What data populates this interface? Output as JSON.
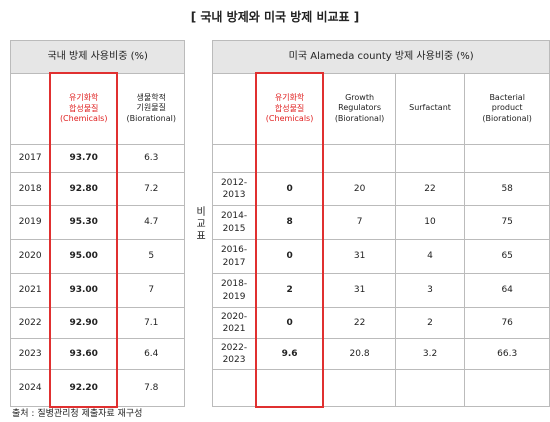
{
  "title": "[ 국내 방제와 미국 방제 비교표 ]",
  "domestic": {
    "header": "국내 방제 사용비중 (%)",
    "columns": [
      "유기화학\n합성물질\n(Chemicals)",
      "생물학적\n기원물질\n(Biorational)"
    ],
    "rows": [
      [
        "2017",
        "93.70",
        "6.3"
      ],
      [
        "2018",
        "92.80",
        "7.2"
      ],
      [
        "2019",
        "95.30",
        "4.7"
      ],
      [
        "2020",
        "95.00",
        "5"
      ],
      [
        "2021",
        "93.00",
        "7"
      ],
      [
        "2022",
        "92.90",
        "7.1"
      ],
      [
        "2023",
        "93.60",
        "6.4"
      ],
      [
        "2024",
        "92.20",
        "7.8"
      ]
    ]
  },
  "side_label": "비교표",
  "us": {
    "header": "미국 Alameda county 방제 사용비중 (%)",
    "columns": [
      "유기화학\n합성물질\n(Chemicals)",
      "Growth\nRegulators\n(Biorational)",
      "Surfactant",
      "Bacterial\nproduct\n(Biorational)"
    ],
    "rows": [
      [
        "2012-\n2013",
        "0",
        "20",
        "22",
        "58"
      ],
      [
        "2014-\n2015",
        "8",
        "7",
        "10",
        "75"
      ],
      [
        "2016-\n2017",
        "0",
        "31",
        "4",
        "65"
      ],
      [
        "2018-\n2019",
        "2",
        "31",
        "3",
        "64"
      ],
      [
        "2020-\n2021",
        "0",
        "22",
        "2",
        "76"
      ],
      [
        "2022-\n2023",
        "9.6",
        "20.8",
        "3.2",
        "66.3"
      ]
    ]
  },
  "source": "출처 : 질병관리청 제출자료 재구성"
}
